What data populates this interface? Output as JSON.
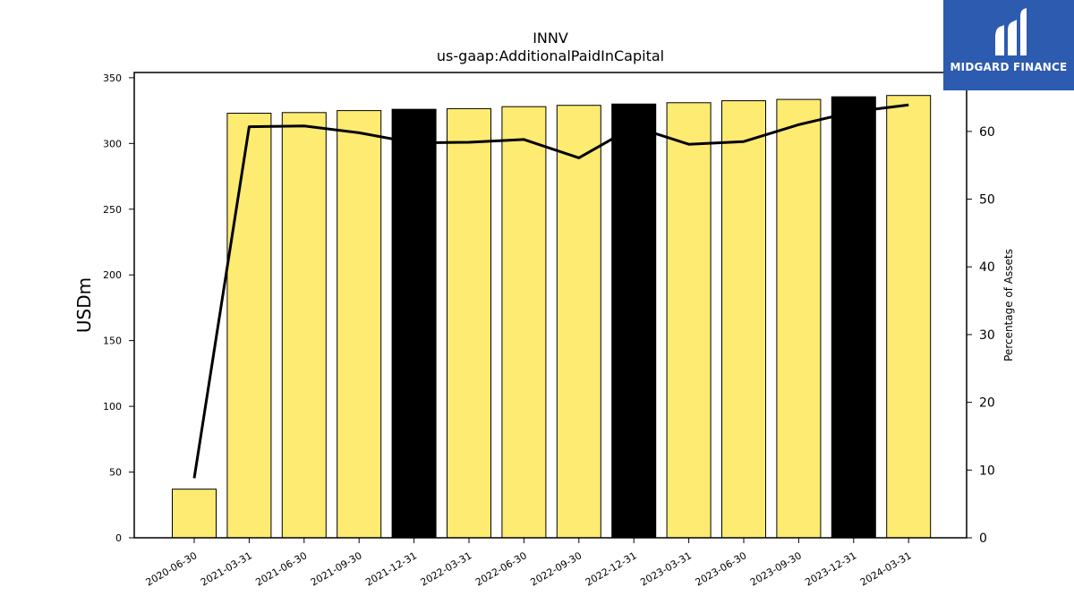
{
  "logo": {
    "text": "MIDGARD FINANCE"
  },
  "chart_data": {
    "type": "bar",
    "title": "INNV",
    "subtitle": "us-gaap:AdditionalPaidInCapital",
    "ylabel": "USDm",
    "y2label": "Percentage of Assets",
    "ylim": [
      0,
      354
    ],
    "y2lim": [
      0,
      68.7
    ],
    "yticks": [
      0,
      50,
      100,
      150,
      200,
      250,
      300,
      350
    ],
    "y2ticks": [
      0,
      10,
      20,
      30,
      40,
      50,
      60
    ],
    "categories": [
      "2020-06-30",
      "2021-03-31",
      "2021-06-30",
      "2021-09-30",
      "2021-12-31",
      "2022-03-31",
      "2022-06-30",
      "2022-09-30",
      "2022-12-31",
      "2023-03-31",
      "2023-06-30",
      "2023-09-30",
      "2023-12-31",
      "2024-03-31"
    ],
    "series": [
      {
        "type": "bar",
        "values": [
          37,
          323,
          323.5,
          325,
          326,
          326.5,
          328,
          329,
          330,
          331,
          332.5,
          333.5,
          335.5,
          336.5
        ],
        "highlight": [
          false,
          false,
          false,
          false,
          true,
          false,
          false,
          false,
          true,
          false,
          false,
          false,
          true,
          false
        ],
        "color": "#fdeb72",
        "highlight_color": "#000000"
      },
      {
        "type": "line",
        "axis": "right",
        "values": [
          8.8,
          60.7,
          60.8,
          59.8,
          58.3,
          58.4,
          58.8,
          56.1,
          60.7,
          58.1,
          58.5,
          61.0,
          62.9,
          63.9
        ],
        "color": "#000000"
      }
    ],
    "grid": false
  }
}
